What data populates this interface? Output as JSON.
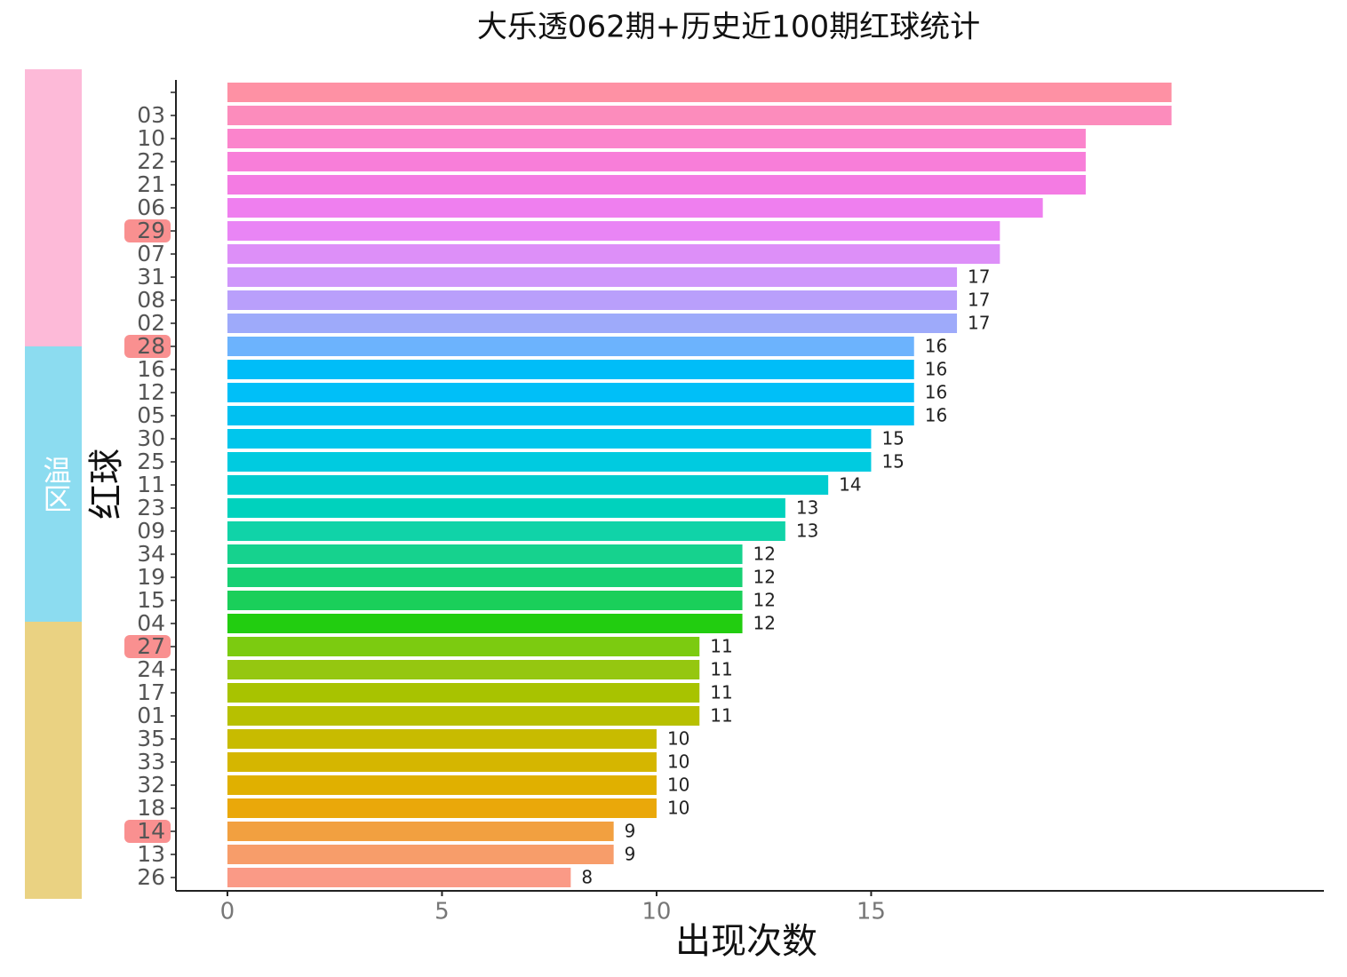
{
  "chart_data": {
    "type": "bar",
    "orientation": "horizontal",
    "title": "大乐透062期+历史近100期红球统计",
    "x_label": "出现次数",
    "y_label": "红球",
    "categories": [
      null,
      "03",
      "10",
      "22",
      "21",
      "06",
      "29",
      "07",
      "31",
      "08",
      "02",
      "28",
      "16",
      "12",
      "05",
      "30",
      "25",
      "11",
      "23",
      "09",
      "34",
      "19",
      "15",
      "04",
      "27",
      "24",
      "17",
      "01",
      "35",
      "33",
      "32",
      "18",
      "14",
      "13",
      "26"
    ],
    "values": [
      22,
      22,
      20,
      20,
      20,
      19,
      18,
      18,
      17,
      17,
      17,
      16,
      16,
      16,
      16,
      15,
      15,
      14,
      13,
      13,
      12,
      12,
      12,
      12,
      11,
      11,
      11,
      11,
      10,
      10,
      10,
      10,
      9,
      9,
      8
    ],
    "value_labels": [
      null,
      null,
      null,
      null,
      null,
      null,
      null,
      null,
      "17",
      "17",
      "17",
      "16",
      "16",
      "16",
      "16",
      "15",
      "15",
      "14",
      "13",
      "13",
      "12",
      "12",
      "12",
      "12",
      "11",
      "11",
      "11",
      "11",
      "10",
      "10",
      "10",
      "10",
      "9",
      "9",
      "8"
    ],
    "colors": [
      "#fe91a4",
      "#fc8cbc",
      "#fb84cc",
      "#f87ed9",
      "#f47be3",
      "#ef7fef",
      "#e985f5",
      "#dd8ff8",
      "#cf96fb",
      "#b99ffb",
      "#9eaafa",
      "#6cb3fd",
      "#00bdf8",
      "#00bff8",
      "#00c1f2",
      "#00c6ec",
      "#00cbe0",
      "#00cdd0",
      "#00d2bd",
      "#10d3a8",
      "#16d28e",
      "#16d073",
      "#1acf5a",
      "#22cd10",
      "#7ccb10",
      "#95c710",
      "#a8c300",
      "#b7c000",
      "#c8bb00",
      "#d5b600",
      "#e0b000",
      "#eaa80a",
      "#f2a040",
      "#f79d6a",
      "#fa9a86"
    ],
    "highlighted": [
      6,
      11,
      24,
      32
    ],
    "highlight_color": "#f87c7c",
    "zone_label": "温区",
    "xlim": [
      -1.2,
      25.55
    ],
    "xticks": [
      0,
      5,
      10,
      15
    ],
    "grid": false
  }
}
